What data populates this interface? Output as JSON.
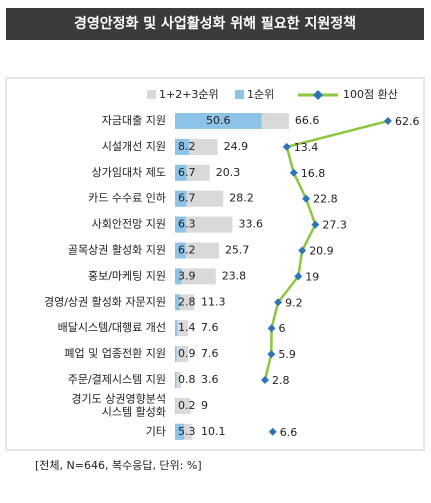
{
  "chart_data": {
    "type": "bar-line",
    "title": "경영안정화 및 사업활성화 위해 필요한 지원정책",
    "categories": [
      "자금대출 지원",
      "시설개선 지원",
      "상가임대차 제도",
      "카드 수수료 인하",
      "사회안전망 지원",
      "골목상권 활성화 지원",
      "홍보/마케팅 지원",
      "경영/상권 활성화 자문지원",
      "배달시스템/대행료 개선",
      "폐업 및 업종전환 지원",
      "주문/결제시스템 지원",
      "경기도 상권영향분석\n시스템 활성화",
      "기타"
    ],
    "series": [
      {
        "name": "1+2+3순위",
        "color": "#d9d9d9",
        "values": [
          66.6,
          24.9,
          20.3,
          28.2,
          33.6,
          25.7,
          23.8,
          11.3,
          7.6,
          7.6,
          3.6,
          9.0,
          10.1
        ]
      },
      {
        "name": "1순위",
        "color": "#8ec3e8",
        "values": [
          50.6,
          8.2,
          6.7,
          6.7,
          6.3,
          6.2,
          3.9,
          2.8,
          1.4,
          0.9,
          0.8,
          0.2,
          5.3
        ]
      },
      {
        "name": "100점 환산",
        "color": "#8dc63f",
        "marker_color": "#2e75b6",
        "values": [
          62.6,
          13.4,
          16.8,
          22.8,
          27.3,
          20.9,
          19.0,
          9.2,
          6.0,
          5.9,
          2.8,
          null,
          6.6
        ]
      }
    ],
    "note": "[전체, N=646, 복수응답, 단위: %]"
  }
}
